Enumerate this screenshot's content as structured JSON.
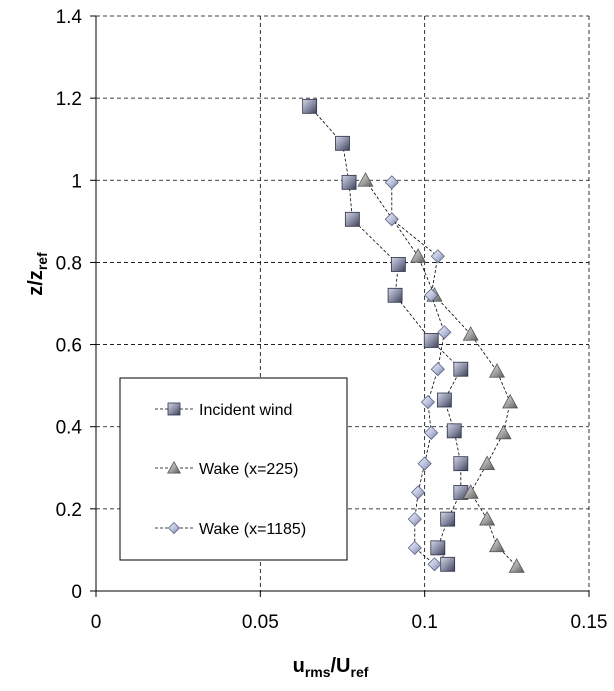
{
  "chart_data": {
    "type": "scatter",
    "xlabel": {
      "main": "u",
      "sub1": "rms",
      "mid": "/U",
      "sub2": "ref"
    },
    "ylabel": {
      "main": "z/z",
      "sub": "ref"
    },
    "xlim": [
      0,
      0.15
    ],
    "ylim": [
      0,
      1.4
    ],
    "xticks": [
      0,
      0.05,
      0.1,
      0.15
    ],
    "yticks": [
      0,
      0.2,
      0.4,
      0.6,
      0.8,
      1.0,
      1.2,
      1.4
    ],
    "xtick_labels": [
      "0",
      "0.05",
      "0.1",
      "0.15"
    ],
    "ytick_labels": [
      "0",
      "0.2",
      "0.4",
      "0.6",
      "0.8",
      "1",
      "1.2",
      "1.4"
    ],
    "grid": true,
    "legend_position": "lower-left",
    "series": [
      {
        "name": "Incident wind",
        "marker": "square",
        "color": "#8c90a8",
        "points": [
          [
            0.065,
            1.18
          ],
          [
            0.075,
            1.09
          ],
          [
            0.077,
            0.995
          ],
          [
            0.078,
            0.905
          ],
          [
            0.092,
            0.795
          ],
          [
            0.091,
            0.72
          ],
          [
            0.102,
            0.61
          ],
          [
            0.111,
            0.54
          ],
          [
            0.106,
            0.465
          ],
          [
            0.109,
            0.39
          ],
          [
            0.111,
            0.31
          ],
          [
            0.111,
            0.24
          ],
          [
            0.107,
            0.175
          ],
          [
            0.104,
            0.105
          ],
          [
            0.107,
            0.065
          ]
        ]
      },
      {
        "name": "Wake (x=225)",
        "marker": "triangle",
        "color": "#a0a0a0",
        "points": [
          [
            0.082,
            1.0
          ],
          [
            0.098,
            0.815
          ],
          [
            0.103,
            0.72
          ],
          [
            0.114,
            0.625
          ],
          [
            0.122,
            0.535
          ],
          [
            0.126,
            0.46
          ],
          [
            0.124,
            0.385
          ],
          [
            0.119,
            0.31
          ],
          [
            0.114,
            0.24
          ],
          [
            0.119,
            0.175
          ],
          [
            0.122,
            0.11
          ],
          [
            0.128,
            0.06
          ]
        ]
      },
      {
        "name": "Wake (x=1185)",
        "marker": "diamond",
        "color": "#b7bedb",
        "points": [
          [
            0.09,
            0.995
          ],
          [
            0.09,
            0.905
          ],
          [
            0.104,
            0.815
          ],
          [
            0.102,
            0.72
          ],
          [
            0.106,
            0.63
          ],
          [
            0.104,
            0.54
          ],
          [
            0.101,
            0.46
          ],
          [
            0.102,
            0.385
          ],
          [
            0.1,
            0.31
          ],
          [
            0.098,
            0.24
          ],
          [
            0.097,
            0.175
          ],
          [
            0.097,
            0.105
          ],
          [
            0.103,
            0.065
          ]
        ]
      }
    ]
  }
}
